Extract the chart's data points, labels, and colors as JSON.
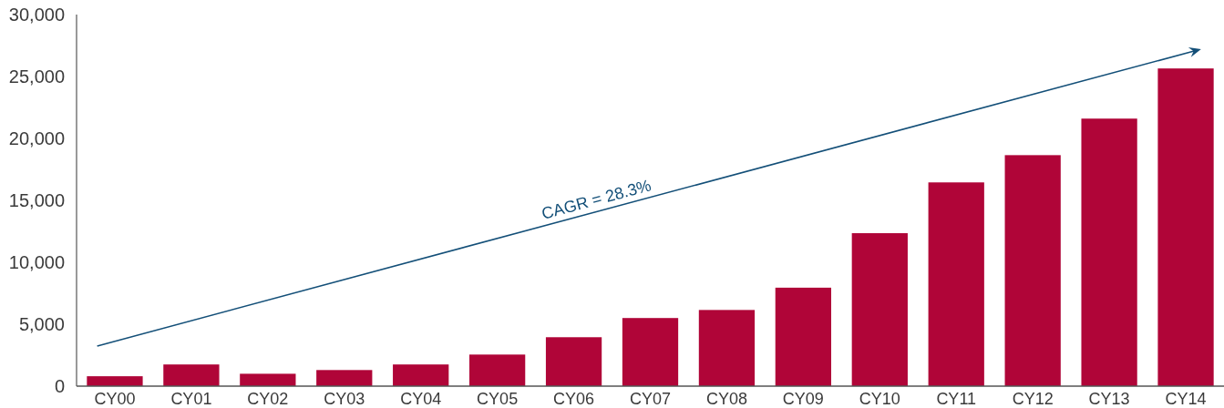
{
  "chart_data": {
    "type": "bar",
    "categories": [
      "CY00",
      "CY01",
      "CY02",
      "CY03",
      "CY04",
      "CY05",
      "CY06",
      "CY07",
      "CY08",
      "CY09",
      "CY10",
      "CY11",
      "CY12",
      "CY13",
      "CY14"
    ],
    "values": [
      800,
      1750,
      1000,
      1300,
      1750,
      2550,
      3950,
      5500,
      6150,
      7950,
      12350,
      16450,
      18650,
      21600,
      25650
    ],
    "color": "#b00538",
    "ylim": [
      0,
      30000
    ],
    "yticks": [
      0,
      {
        "value": 5000,
        "label": "5,000"
      },
      {
        "value": 10000,
        "label": "10,000"
      },
      {
        "value": 15000,
        "label": "15,000"
      },
      {
        "value": 20000,
        "label": "20,000"
      },
      {
        "value": 25000,
        "label": "25,000"
      },
      {
        "value": 30000,
        "label": "30,000"
      }
    ],
    "annotations": [
      "CAGR = 28.3%"
    ]
  }
}
